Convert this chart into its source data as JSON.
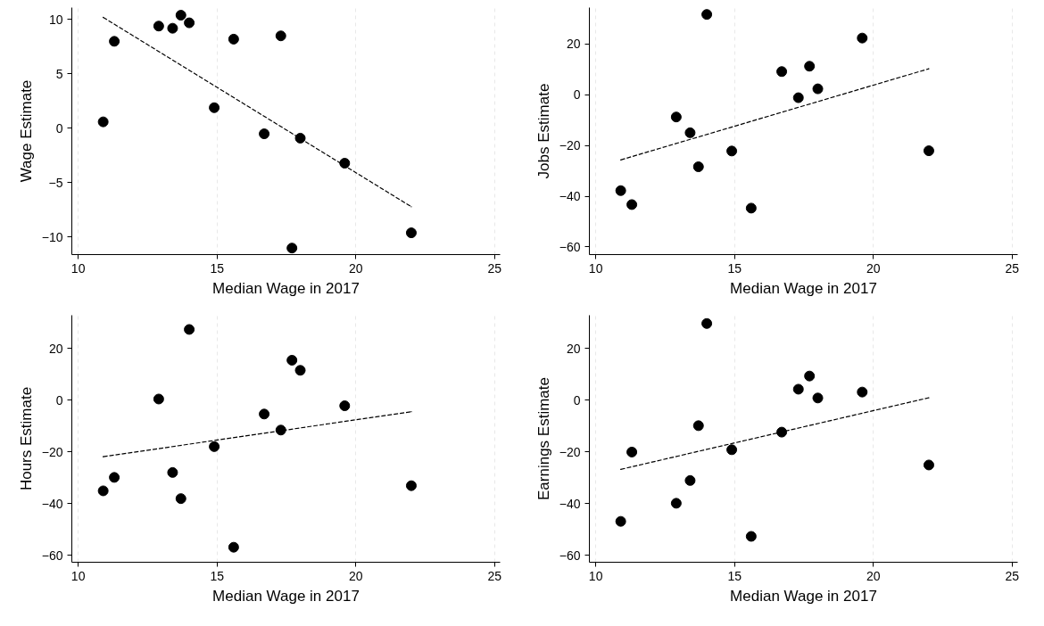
{
  "chart_data": [
    {
      "type": "scatter",
      "xlabel": "Median Wage in 2017",
      "ylabel": "Wage Estimate",
      "xlim": [
        9.77,
        25.2
      ],
      "ylim": [
        -11.6,
        11.1
      ],
      "xticks": [
        10,
        15,
        20,
        25
      ],
      "yticks": [
        -10,
        -5,
        0,
        5,
        10
      ],
      "grid": "x",
      "series": [
        {
          "marker": "circle",
          "color": "#000000",
          "x": [
            10.9,
            11.3,
            12.9,
            13.4,
            13.7,
            14.0,
            14.9,
            15.6,
            16.7,
            17.3,
            17.7,
            18.0,
            19.6,
            22.0
          ],
          "values": [
            0.6,
            8.0,
            9.4,
            9.2,
            10.4,
            9.7,
            1.9,
            8.2,
            -0.5,
            8.5,
            -11.0,
            -0.9,
            -3.2,
            -9.6
          ]
        },
        {
          "type": "line",
          "color": "#000000",
          "line_style": "dashed",
          "x": [
            10.9,
            22.0
          ],
          "values": [
            10.2,
            -7.2
          ]
        }
      ]
    },
    {
      "type": "scatter",
      "xlabel": "Median Wage in 2017",
      "ylabel": "Jobs Estimate",
      "xlim": [
        9.77,
        25.2
      ],
      "ylim": [
        -63,
        34.3
      ],
      "xticks": [
        10,
        15,
        20,
        25
      ],
      "yticks": [
        -60,
        -40,
        -20,
        0,
        20
      ],
      "grid": "x",
      "series": [
        {
          "marker": "circle",
          "color": "#000000",
          "x": [
            10.9,
            11.3,
            12.9,
            13.4,
            13.7,
            14.0,
            14.9,
            15.6,
            16.7,
            17.3,
            17.7,
            18.0,
            19.6,
            22.0
          ],
          "values": [
            -37.8,
            -43.3,
            -8.8,
            -15.0,
            -28.4,
            31.6,
            -22.2,
            -44.7,
            9.1,
            -1.2,
            11.2,
            2.3,
            22.3,
            -22.1
          ]
        },
        {
          "type": "line",
          "color": "#000000",
          "line_style": "dashed",
          "x": [
            10.9,
            22.0
          ],
          "values": [
            -25.7,
            10.2
          ]
        }
      ]
    },
    {
      "type": "scatter",
      "xlabel": "Median Wage in 2017",
      "ylabel": "Hours Estimate",
      "xlim": [
        9.77,
        25.2
      ],
      "ylim": [
        -62.7,
        32.8
      ],
      "xticks": [
        10,
        15,
        20,
        25
      ],
      "yticks": [
        -60,
        -40,
        -20,
        0,
        20
      ],
      "grid": "x",
      "series": [
        {
          "marker": "circle",
          "color": "#000000",
          "x": [
            10.9,
            11.3,
            12.9,
            13.4,
            13.7,
            14.0,
            14.9,
            15.6,
            16.7,
            17.3,
            17.7,
            18.0,
            19.6,
            22.0
          ],
          "values": [
            -35.1,
            -29.9,
            0.4,
            -28.0,
            -38.1,
            27.3,
            -18.0,
            -56.9,
            -5.4,
            -11.6,
            15.4,
            11.5,
            -2.2,
            -33.1
          ]
        },
        {
          "type": "line",
          "color": "#000000",
          "line_style": "dashed",
          "x": [
            10.9,
            22.0
          ],
          "values": [
            -21.9,
            -4.5
          ]
        }
      ]
    },
    {
      "type": "scatter",
      "xlabel": "Median Wage in 2017",
      "ylabel": "Earnings Estimate",
      "xlim": [
        9.77,
        25.2
      ],
      "ylim": [
        -62.7,
        32.8
      ],
      "xticks": [
        10,
        15,
        20,
        25
      ],
      "yticks": [
        -60,
        -40,
        -20,
        0,
        20
      ],
      "grid": "x",
      "series": [
        {
          "marker": "circle",
          "color": "#000000",
          "x": [
            10.9,
            11.3,
            12.9,
            13.4,
            13.7,
            14.0,
            14.9,
            15.6,
            16.7,
            17.3,
            17.7,
            18.0,
            19.6,
            22.0
          ],
          "values": [
            -46.9,
            -20.1,
            -39.9,
            -31.1,
            -9.9,
            29.6,
            -19.2,
            -52.7,
            -12.4,
            4.2,
            9.3,
            0.8,
            3.1,
            -25.1
          ]
        },
        {
          "type": "line",
          "color": "#000000",
          "line_style": "dashed",
          "x": [
            10.9,
            22.0
          ],
          "values": [
            -26.8,
            0.9
          ]
        }
      ]
    }
  ]
}
